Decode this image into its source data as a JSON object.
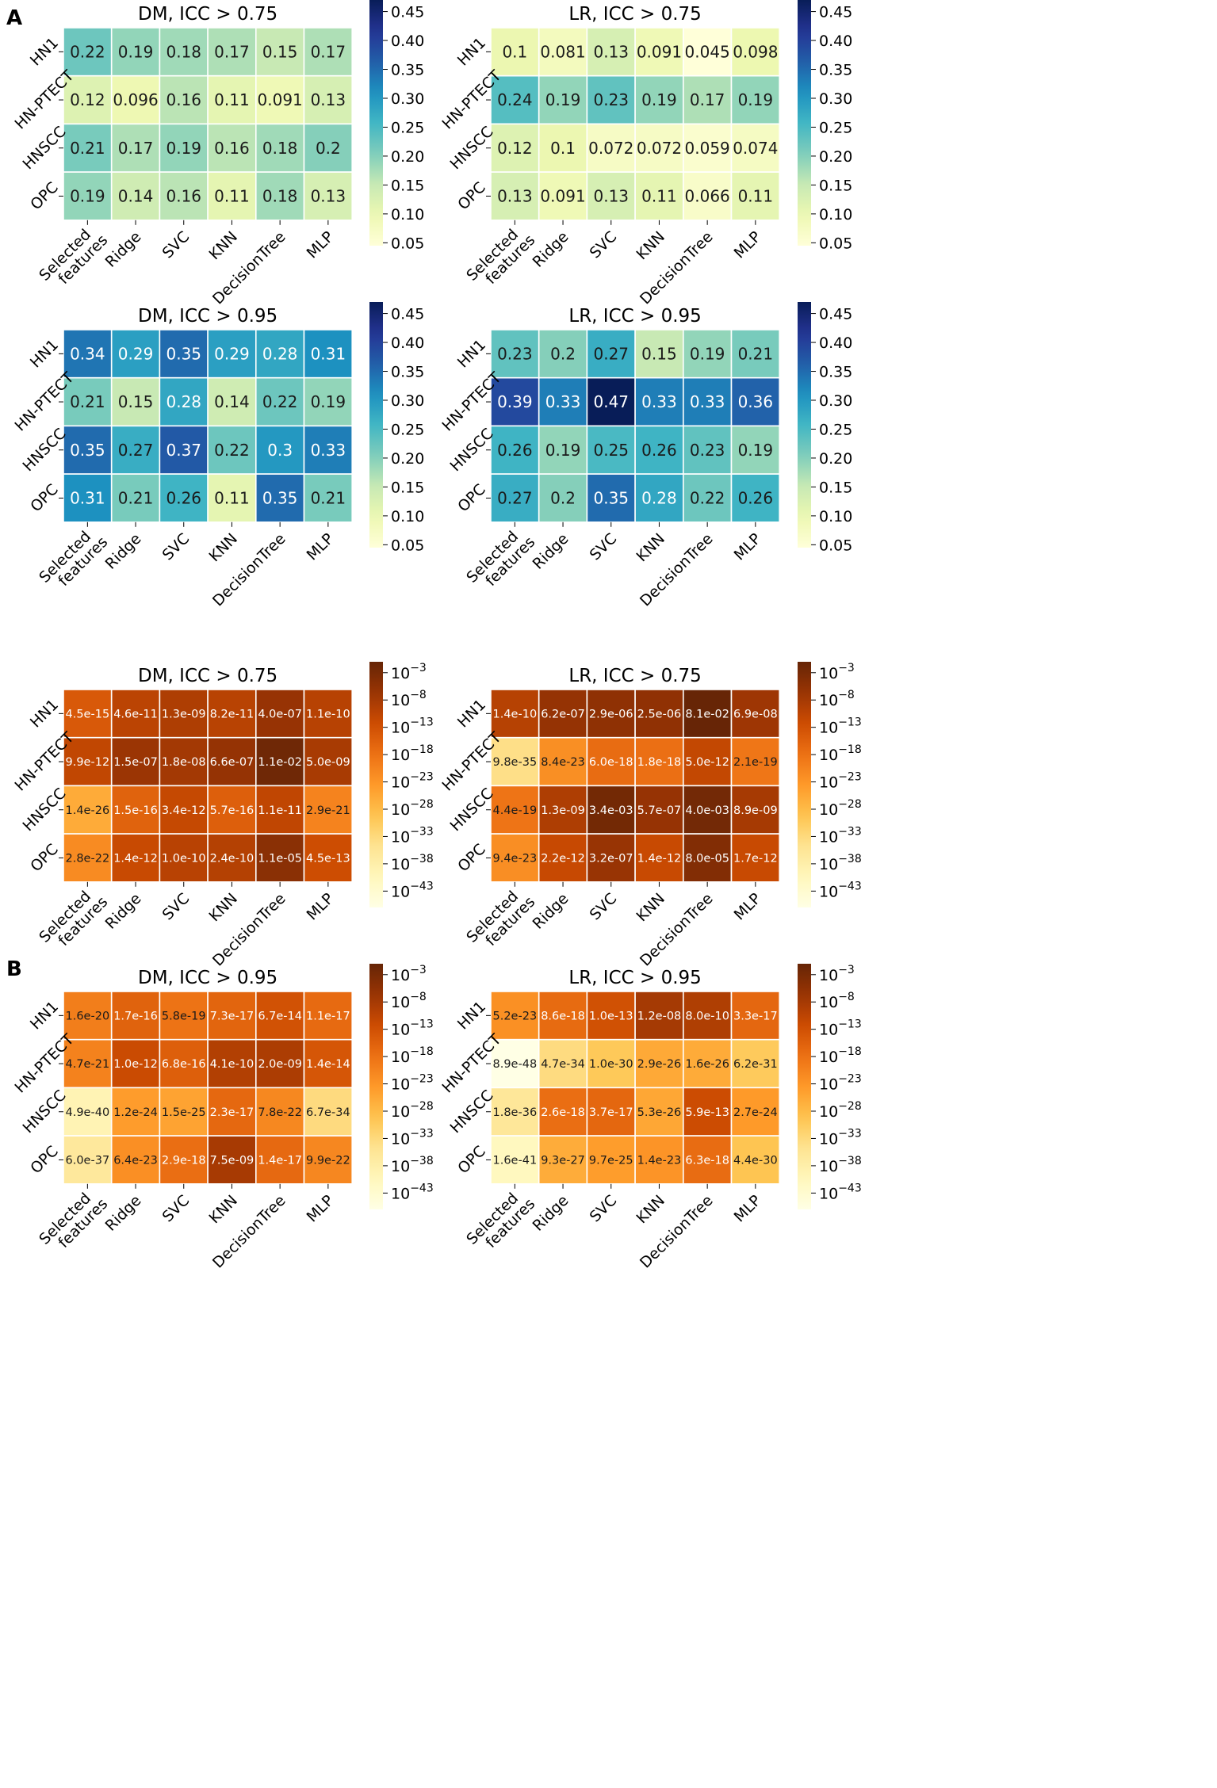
{
  "chart_data": [
    {
      "type": "heatmap",
      "panel": "A",
      "title": "DM, ICC > 0.75",
      "scale": "linear",
      "cmap": "YlGnBu",
      "x": [
        "Selected\nfeatures",
        "Ridge",
        "SVC",
        "KNN",
        "DecisionTree",
        "MLP"
      ],
      "y": [
        "HN1",
        "HN-PTECT",
        "HNSCC",
        "OPC"
      ],
      "values": [
        [
          0.22,
          0.19,
          0.18,
          0.17,
          0.15,
          0.17
        ],
        [
          0.12,
          0.096,
          0.16,
          0.11,
          0.091,
          0.13
        ],
        [
          0.21,
          0.17,
          0.19,
          0.16,
          0.18,
          0.2
        ],
        [
          0.19,
          0.14,
          0.16,
          0.11,
          0.18,
          0.13
        ]
      ],
      "labels": [
        [
          "0.22",
          "0.19",
          "0.18",
          "0.17",
          "0.15",
          "0.17"
        ],
        [
          "0.12",
          "0.096",
          "0.16",
          "0.11",
          "0.091",
          "0.13"
        ],
        [
          "0.21",
          "0.17",
          "0.19",
          "0.16",
          "0.18",
          "0.2"
        ],
        [
          "0.19",
          "0.14",
          "0.16",
          "0.11",
          "0.18",
          "0.13"
        ]
      ],
      "vmin": 0.045,
      "vmax": 0.47,
      "colorbar_ticks": [
        0.05,
        0.1,
        0.15,
        0.2,
        0.25,
        0.3,
        0.35,
        0.4,
        0.45
      ],
      "colorbar_labels": [
        "0.05",
        "0.10",
        "0.15",
        "0.20",
        "0.25",
        "0.30",
        "0.35",
        "0.40",
        "0.45"
      ]
    },
    {
      "type": "heatmap",
      "title": "LR, ICC > 0.75",
      "scale": "linear",
      "cmap": "YlGnBu",
      "x": [
        "Selected\nfeatures",
        "Ridge",
        "SVC",
        "KNN",
        "DecisionTree",
        "MLP"
      ],
      "y": [
        "HN1",
        "HN-PTECT",
        "HNSCC",
        "OPC"
      ],
      "values": [
        [
          0.1,
          0.081,
          0.13,
          0.091,
          0.045,
          0.098
        ],
        [
          0.24,
          0.19,
          0.23,
          0.19,
          0.17,
          0.19
        ],
        [
          0.12,
          0.1,
          0.072,
          0.072,
          0.059,
          0.074
        ],
        [
          0.13,
          0.091,
          0.13,
          0.11,
          0.066,
          0.11
        ]
      ],
      "labels": [
        [
          "0.1",
          "0.081",
          "0.13",
          "0.091",
          "0.045",
          "0.098"
        ],
        [
          "0.24",
          "0.19",
          "0.23",
          "0.19",
          "0.17",
          "0.19"
        ],
        [
          "0.12",
          "0.1",
          "0.072",
          "0.072",
          "0.059",
          "0.074"
        ],
        [
          "0.13",
          "0.091",
          "0.13",
          "0.11",
          "0.066",
          "0.11"
        ]
      ],
      "vmin": 0.045,
      "vmax": 0.47,
      "colorbar_ticks": [
        0.05,
        0.1,
        0.15,
        0.2,
        0.25,
        0.3,
        0.35,
        0.4,
        0.45
      ],
      "colorbar_labels": [
        "0.05",
        "0.10",
        "0.15",
        "0.20",
        "0.25",
        "0.30",
        "0.35",
        "0.40",
        "0.45"
      ]
    },
    {
      "type": "heatmap",
      "title": "DM, ICC > 0.95",
      "scale": "linear",
      "cmap": "YlGnBu",
      "x": [
        "Selected\nfeatures",
        "Ridge",
        "SVC",
        "KNN",
        "DecisionTree",
        "MLP"
      ],
      "y": [
        "HN1",
        "HN-PTECT",
        "HNSCC",
        "OPC"
      ],
      "values": [
        [
          0.34,
          0.29,
          0.35,
          0.29,
          0.28,
          0.31
        ],
        [
          0.21,
          0.15,
          0.28,
          0.14,
          0.22,
          0.19
        ],
        [
          0.35,
          0.27,
          0.37,
          0.22,
          0.3,
          0.33
        ],
        [
          0.31,
          0.21,
          0.26,
          0.11,
          0.35,
          0.21
        ]
      ],
      "labels": [
        [
          "0.34",
          "0.29",
          "0.35",
          "0.29",
          "0.28",
          "0.31"
        ],
        [
          "0.21",
          "0.15",
          "0.28",
          "0.14",
          "0.22",
          "0.19"
        ],
        [
          "0.35",
          "0.27",
          "0.37",
          "0.22",
          "0.3",
          "0.33"
        ],
        [
          "0.31",
          "0.21",
          "0.26",
          "0.11",
          "0.35",
          "0.21"
        ]
      ],
      "vmin": 0.045,
      "vmax": 0.47,
      "colorbar_ticks": [
        0.05,
        0.1,
        0.15,
        0.2,
        0.25,
        0.3,
        0.35,
        0.4,
        0.45
      ],
      "colorbar_labels": [
        "0.05",
        "0.10",
        "0.15",
        "0.20",
        "0.25",
        "0.30",
        "0.35",
        "0.40",
        "0.45"
      ]
    },
    {
      "type": "heatmap",
      "title": "LR, ICC > 0.95",
      "scale": "linear",
      "cmap": "YlGnBu",
      "x": [
        "Selected\nfeatures",
        "Ridge",
        "SVC",
        "KNN",
        "DecisionTree",
        "MLP"
      ],
      "y": [
        "HN1",
        "HN-PTECT",
        "HNSCC",
        "OPC"
      ],
      "values": [
        [
          0.23,
          0.2,
          0.27,
          0.15,
          0.19,
          0.21
        ],
        [
          0.39,
          0.33,
          0.47,
          0.33,
          0.33,
          0.36
        ],
        [
          0.26,
          0.19,
          0.25,
          0.26,
          0.23,
          0.19
        ],
        [
          0.27,
          0.2,
          0.35,
          0.28,
          0.22,
          0.26
        ]
      ],
      "labels": [
        [
          "0.23",
          "0.2",
          "0.27",
          "0.15",
          "0.19",
          "0.21"
        ],
        [
          "0.39",
          "0.33",
          "0.47",
          "0.33",
          "0.33",
          "0.36"
        ],
        [
          "0.26",
          "0.19",
          "0.25",
          "0.26",
          "0.23",
          "0.19"
        ],
        [
          "0.27",
          "0.2",
          "0.35",
          "0.28",
          "0.22",
          "0.26"
        ]
      ],
      "vmin": 0.045,
      "vmax": 0.47,
      "colorbar_ticks": [
        0.05,
        0.1,
        0.15,
        0.2,
        0.25,
        0.3,
        0.35,
        0.4,
        0.45
      ],
      "colorbar_labels": [
        "0.05",
        "0.10",
        "0.15",
        "0.20",
        "0.25",
        "0.30",
        "0.35",
        "0.40",
        "0.45"
      ]
    },
    {
      "type": "heatmap",
      "panel": "B",
      "title": "DM, ICC > 0.75",
      "scale": "log",
      "cmap": "YlOrBr",
      "x": [
        "Selected\nfeatures",
        "Ridge",
        "SVC",
        "KNN",
        "DecisionTree",
        "MLP"
      ],
      "y": [
        "HN1",
        "HN-PTECT",
        "HNSCC",
        "OPC"
      ],
      "labels": [
        [
          "4.5e-15",
          "4.6e-11",
          "1.3e-09",
          "8.2e-11",
          "4.0e-07",
          "1.1e-10"
        ],
        [
          "9.9e-12",
          "1.5e-07",
          "1.8e-08",
          "6.6e-07",
          "1.1e-02",
          "5.0e-09"
        ],
        [
          "1.4e-26",
          "1.5e-16",
          "3.4e-12",
          "5.7e-16",
          "1.1e-11",
          "2.9e-21"
        ],
        [
          "2.8e-22",
          "1.4e-12",
          "1.0e-10",
          "2.4e-10",
          "1.1e-05",
          "4.5e-13"
        ]
      ],
      "vmin_exp": -46,
      "vmax_exp": -1,
      "colorbar_ticks_exp": [
        -3,
        -8,
        -13,
        -18,
        -23,
        -28,
        -33,
        -38,
        -43
      ],
      "colorbar_base": "10"
    },
    {
      "type": "heatmap",
      "title": "LR, ICC > 0.75",
      "scale": "log",
      "cmap": "YlOrBr",
      "x": [
        "Selected\nfeatures",
        "Ridge",
        "SVC",
        "KNN",
        "DecisionTree",
        "MLP"
      ],
      "y": [
        "HN1",
        "HN-PTECT",
        "HNSCC",
        "OPC"
      ],
      "labels": [
        [
          "1.4e-10",
          "6.2e-07",
          "2.9e-06",
          "2.5e-06",
          "8.1e-02",
          "6.9e-08"
        ],
        [
          "9.8e-35",
          "8.4e-23",
          "6.0e-18",
          "1.8e-18",
          "5.0e-12",
          "2.1e-19"
        ],
        [
          "4.4e-19",
          "1.3e-09",
          "3.4e-03",
          "5.7e-07",
          "4.0e-03",
          "8.9e-09"
        ],
        [
          "9.4e-23",
          "2.2e-12",
          "3.2e-07",
          "1.4e-12",
          "8.0e-05",
          "1.7e-12"
        ]
      ],
      "vmin_exp": -46,
      "vmax_exp": -1,
      "colorbar_ticks_exp": [
        -3,
        -8,
        -13,
        -18,
        -23,
        -28,
        -33,
        -38,
        -43
      ],
      "colorbar_base": "10"
    },
    {
      "type": "heatmap",
      "title": "DM, ICC > 0.95",
      "scale": "log",
      "cmap": "YlOrBr",
      "x": [
        "Selected\nfeatures",
        "Ridge",
        "SVC",
        "KNN",
        "DecisionTree",
        "MLP"
      ],
      "y": [
        "HN1",
        "HN-PTECT",
        "HNSCC",
        "OPC"
      ],
      "labels": [
        [
          "1.6e-20",
          "1.7e-16",
          "5.8e-19",
          "7.3e-17",
          "6.7e-14",
          "1.1e-17"
        ],
        [
          "4.7e-21",
          "1.0e-12",
          "6.8e-16",
          "4.1e-10",
          "2.0e-09",
          "1.4e-14"
        ],
        [
          "4.9e-40",
          "1.2e-24",
          "1.5e-25",
          "2.3e-17",
          "7.8e-22",
          "6.7e-34"
        ],
        [
          "6.0e-37",
          "6.4e-23",
          "2.9e-18",
          "7.5e-09",
          "1.4e-17",
          "9.9e-22"
        ]
      ],
      "vmin_exp": -46,
      "vmax_exp": -1,
      "colorbar_ticks_exp": [
        -3,
        -8,
        -13,
        -18,
        -23,
        -28,
        -33,
        -38,
        -43
      ],
      "colorbar_base": "10"
    },
    {
      "type": "heatmap",
      "title": "LR, ICC > 0.95",
      "scale": "log",
      "cmap": "YlOrBr",
      "x": [
        "Selected\nfeatures",
        "Ridge",
        "SVC",
        "KNN",
        "DecisionTree",
        "MLP"
      ],
      "y": [
        "HN1",
        "HN-PTECT",
        "HNSCC",
        "OPC"
      ],
      "labels": [
        [
          "5.2e-23",
          "8.6e-18",
          "1.0e-13",
          "1.2e-08",
          "8.0e-10",
          "3.3e-17"
        ],
        [
          "8.9e-48",
          "4.7e-34",
          "1.0e-30",
          "2.9e-26",
          "1.6e-26",
          "6.2e-31"
        ],
        [
          "1.8e-36",
          "2.6e-18",
          "3.7e-17",
          "5.3e-26",
          "5.9e-13",
          "2.7e-24"
        ],
        [
          "1.6e-41",
          "9.3e-27",
          "9.7e-25",
          "1.4e-23",
          "6.3e-18",
          "4.4e-30"
        ]
      ],
      "vmin_exp": -46,
      "vmax_exp": -1,
      "colorbar_ticks_exp": [
        -3,
        -8,
        -13,
        -18,
        -23,
        -28,
        -33,
        -38,
        -43
      ],
      "colorbar_base": "10"
    }
  ]
}
